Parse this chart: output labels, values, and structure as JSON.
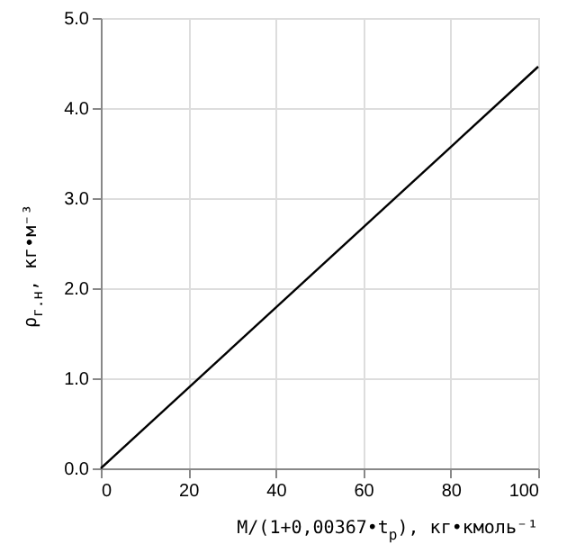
{
  "chart_data": {
    "type": "line",
    "xlabel": "M/(1+0,00367•t$_{р}$), кг•кмоль⁻¹",
    "ylabel": "ρ$_{г.н}$, кг•м⁻³",
    "x": [
      0,
      100
    ],
    "series": [
      {
        "color": "#000000",
        "values": [
          0,
          4.46
        ]
      }
    ],
    "xlim": [
      0,
      100
    ],
    "xticks": [
      0,
      20,
      40,
      60,
      80,
      100
    ],
    "ylim": [
      0,
      5
    ],
    "yticks": [
      {
        "value": 0,
        "label": "0.0"
      },
      {
        "value": 1,
        "label": "1.0"
      },
      {
        "value": 2,
        "label": "2.0"
      },
      {
        "value": 3,
        "label": "3.0"
      },
      {
        "value": 4,
        "label": "4.0"
      },
      {
        "value": 5,
        "label": "5.0"
      }
    ],
    "grid": true,
    "marker": "none",
    "line_style": "solid"
  }
}
